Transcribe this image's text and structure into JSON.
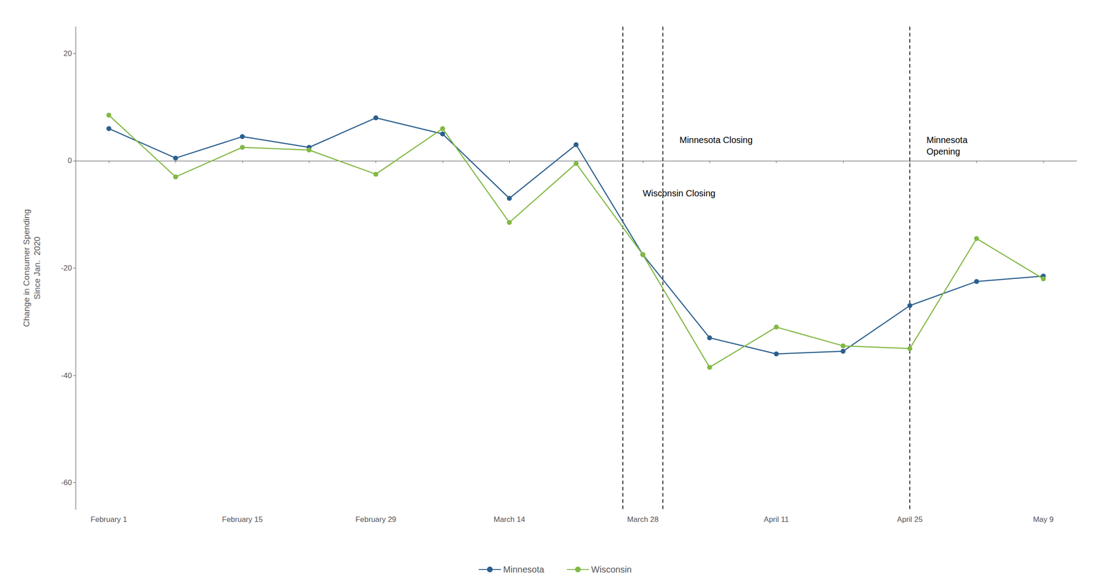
{
  "chart_data": {
    "type": "line",
    "ylabel": "Change in Consumer Spending\nSince Jan.  2020",
    "categories": [
      "February 1",
      null,
      "February 15",
      null,
      "February 29",
      null,
      "March 14",
      null,
      "March 28",
      null,
      "April 11",
      null,
      "April 25",
      null,
      "May 9"
    ],
    "series": [
      {
        "name": "Minnesota",
        "color": "#2b5f8e",
        "values": [
          6.0,
          0.5,
          4.5,
          2.5,
          8.0,
          5.0,
          -7.0,
          3.0,
          -17.5,
          -33.0,
          -36.0,
          -35.5,
          -27.0,
          -22.5,
          -21.5
        ]
      },
      {
        "name": "Wisconsin",
        "color": "#82b944",
        "values": [
          8.5,
          -3.0,
          2.5,
          2.0,
          -2.5,
          6.0,
          -11.5,
          -0.5,
          -17.5,
          -38.5,
          -31.0,
          -34.5,
          -35.0,
          -14.5,
          -22.0
        ]
      }
    ],
    "ylim": [
      -65,
      25
    ],
    "yticks": [
      -60,
      -40,
      -20,
      0,
      20
    ],
    "grid": false,
    "legend": "bottom",
    "marker": "circle",
    "annotations": [
      {
        "text": "Minnesota Closing"
      },
      {
        "text": "Wisconsin Closing"
      },
      {
        "text": "Minnesota\nOpening"
      }
    ]
  }
}
